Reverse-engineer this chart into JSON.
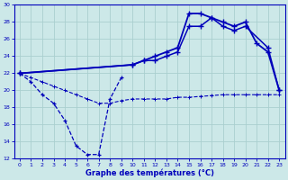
{
  "xlabel": "Graphe des températures (°C)",
  "background_color": "#cce8e8",
  "grid_color": "#aacfcf",
  "line_color": "#0000bb",
  "xlim": [
    -0.5,
    23.5
  ],
  "ylim": [
    12,
    30
  ],
  "yticks": [
    12,
    14,
    16,
    18,
    20,
    22,
    24,
    26,
    28,
    30
  ],
  "xticks": [
    0,
    1,
    2,
    3,
    4,
    5,
    6,
    7,
    8,
    9,
    10,
    11,
    12,
    13,
    14,
    15,
    16,
    17,
    18,
    19,
    20,
    21,
    22,
    23
  ],
  "line_dashed_wavy_x": [
    0,
    1,
    2,
    3,
    4,
    5,
    6,
    7,
    8,
    9
  ],
  "line_dashed_wavy_y": [
    22,
    21,
    19.5,
    18.5,
    16.5,
    13.5,
    12.5,
    12.5,
    19,
    21.5
  ],
  "line_dashed_flat_x": [
    0,
    1,
    2,
    3,
    4,
    5,
    6,
    7,
    8,
    9,
    10,
    11,
    12,
    13,
    14,
    15,
    16,
    17,
    18,
    19,
    20,
    21,
    22,
    23
  ],
  "line_dashed_flat_y": [
    22,
    21.5,
    21,
    20.5,
    20,
    19.5,
    19,
    18.5,
    18.5,
    18.8,
    19,
    19,
    19,
    19,
    19.2,
    19.2,
    19.3,
    19.4,
    19.5,
    19.5,
    19.5,
    19.5,
    19.5,
    19.5
  ],
  "line_solid_lower_x": [
    0,
    10,
    11,
    12,
    13,
    14,
    15,
    16,
    17,
    18,
    19,
    20,
    22,
    23
  ],
  "line_solid_lower_y": [
    22,
    23,
    23.5,
    23.5,
    24,
    24.5,
    27.5,
    27.5,
    28.5,
    27.5,
    27,
    27.5,
    25,
    20
  ],
  "line_solid_upper_x": [
    0,
    10,
    11,
    12,
    13,
    14,
    15,
    16,
    17,
    18,
    19,
    20,
    21,
    22,
    23
  ],
  "line_solid_upper_y": [
    22,
    23,
    23.5,
    24,
    24.5,
    25,
    29,
    29,
    28.5,
    28,
    27.5,
    28,
    25.5,
    24.5,
    20
  ]
}
